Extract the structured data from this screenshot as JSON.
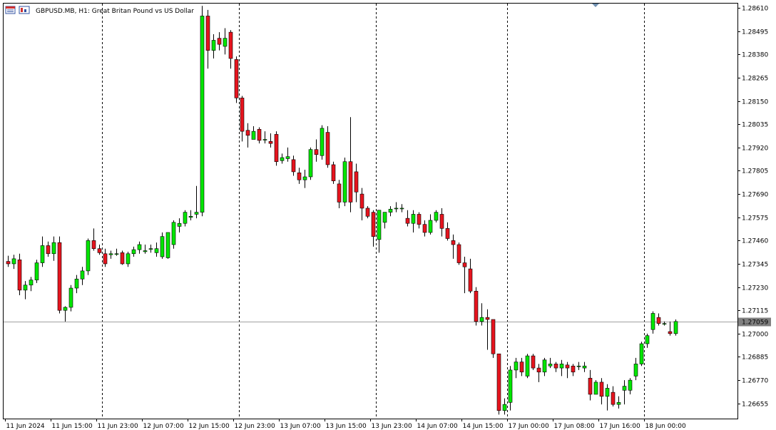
{
  "window": {
    "symbol": "GBPUSD.MB",
    "timeframe": "H1",
    "description": "Great Britan Pound vs US Dollar",
    "icons": [
      "window-menu-icon",
      "chart-type-icon"
    ]
  },
  "colors": {
    "up_body": "#00e600",
    "down_body": "#e6141e",
    "wick": "#000000",
    "grid": "#000000",
    "price_line": "#a0a0a0",
    "price_label_bg": "#808080",
    "price_label_text": "#ffffff"
  },
  "current_price_label": "1.27059",
  "chart_data": {
    "type": "candlestick",
    "title": "",
    "xlabel": "",
    "ylabel": "",
    "ylim": [
      1.2658,
      1.28635
    ],
    "y_ticks": [
      "1.28610",
      "1.28495",
      "1.28380",
      "1.28265",
      "1.28150",
      "1.28035",
      "1.27920",
      "1.27805",
      "1.27690",
      "1.27575",
      "1.27460",
      "1.27345",
      "1.27230",
      "1.27115",
      "1.27000",
      "1.26885",
      "1.26770",
      "1.26655"
    ],
    "x_labels": [
      "11 Jun 2024",
      "11 Jun 15:00",
      "11 Jun 23:00",
      "12 Jun 07:00",
      "12 Jun 15:00",
      "12 Jun 23:00",
      "13 Jun 07:00",
      "13 Jun 15:00",
      "13 Jun 23:00",
      "14 Jun 07:00",
      "14 Jun 15:00",
      "17 Jun 00:00",
      "17 Jun 08:00",
      "17 Jun 16:00",
      "18 Jun 00:00"
    ],
    "x_label_bars": [
      0,
      8,
      16,
      24,
      32,
      40,
      48,
      56,
      64,
      72,
      80,
      88,
      96,
      104,
      112
    ],
    "separator_bars": [
      17,
      41,
      65,
      88,
      112
    ],
    "grid": false,
    "current_price": 1.27059,
    "ohlc": [
      [
        1.27357,
        1.27385,
        1.2733,
        1.27345
      ],
      [
        1.27345,
        1.2739,
        1.2732,
        1.2737
      ],
      [
        1.27365,
        1.27395,
        1.2719,
        1.27215
      ],
      [
        1.27215,
        1.2726,
        1.2717,
        1.2724
      ],
      [
        1.2724,
        1.2728,
        1.2721,
        1.27265
      ],
      [
        1.27265,
        1.27365,
        1.2725,
        1.2735
      ],
      [
        1.2735,
        1.2748,
        1.2733,
        1.27435
      ],
      [
        1.27435,
        1.27455,
        1.2738,
        1.27395
      ],
      [
        1.27395,
        1.2748,
        1.2736,
        1.2745
      ],
      [
        1.2745,
        1.2748,
        1.271,
        1.27115
      ],
      [
        1.27115,
        1.27135,
        1.2706,
        1.2713
      ],
      [
        1.2713,
        1.2724,
        1.2711,
        1.27225
      ],
      [
        1.27225,
        1.2729,
        1.272,
        1.2727
      ],
      [
        1.2727,
        1.2733,
        1.2724,
        1.2731
      ],
      [
        1.2731,
        1.2747,
        1.2729,
        1.2746
      ],
      [
        1.2746,
        1.2752,
        1.2741,
        1.2742
      ],
      [
        1.2742,
        1.2744,
        1.2739,
        1.274
      ],
      [
        1.27395,
        1.2742,
        1.2733,
        1.27345
      ],
      [
        1.2739,
        1.2741,
        1.2737,
        1.27395
      ],
      [
        1.27395,
        1.2742,
        1.27385,
        1.27395
      ],
      [
        1.274,
        1.2741,
        1.2734,
        1.27345
      ],
      [
        1.27345,
        1.27405,
        1.2733,
        1.27395
      ],
      [
        1.27395,
        1.2743,
        1.2738,
        1.27415
      ],
      [
        1.27415,
        1.27455,
        1.27395,
        1.2744
      ],
      [
        1.27405,
        1.2744,
        1.27395,
        1.2741
      ],
      [
        1.2742,
        1.2744,
        1.274,
        1.2742
      ],
      [
        1.274,
        1.2745,
        1.2738,
        1.2742
      ],
      [
        1.2738,
        1.275,
        1.2737,
        1.2748
      ],
      [
        1.27375,
        1.275,
        1.2737,
        1.275
      ],
      [
        1.2744,
        1.2756,
        1.2742,
        1.2755
      ],
      [
        1.2753,
        1.2757,
        1.275,
        1.27545
      ],
      [
        1.27545,
        1.2761,
        1.2753,
        1.276
      ],
      [
        1.27575,
        1.2761,
        1.2756,
        1.2758
      ],
      [
        1.2759,
        1.2773,
        1.2757,
        1.276
      ],
      [
        1.276,
        1.2862,
        1.2758,
        1.2857
      ],
      [
        1.2857,
        1.286,
        1.2831,
        1.284
      ],
      [
        1.284,
        1.2848,
        1.2836,
        1.2845
      ],
      [
        1.2846,
        1.2849,
        1.284,
        1.2843
      ],
      [
        1.2842,
        1.2851,
        1.2838,
        1.2846
      ],
      [
        1.2849,
        1.285,
        1.2831,
        1.2836
      ],
      [
        1.28355,
        1.2837,
        1.2814,
        1.28165
      ],
      [
        1.28165,
        1.28175,
        1.2795,
        1.28
      ],
      [
        1.28005,
        1.2804,
        1.2792,
        1.2798
      ],
      [
        1.2796,
        1.28025,
        1.2797,
        1.28
      ],
      [
        1.2801,
        1.2802,
        1.2794,
        1.27955
      ],
      [
        1.2796,
        1.28,
        1.2794,
        1.2796
      ],
      [
        1.2795,
        1.2799,
        1.2792,
        1.2794
      ],
      [
        1.27985,
        1.28,
        1.2783,
        1.2785
      ],
      [
        1.27855,
        1.2789,
        1.2784,
        1.2787
      ],
      [
        1.27865,
        1.2792,
        1.2785,
        1.27875
      ],
      [
        1.2786,
        1.2788,
        1.2778,
        1.278
      ],
      [
        1.27795,
        1.2782,
        1.2774,
        1.2776
      ],
      [
        1.2776,
        1.2781,
        1.2772,
        1.27775
      ],
      [
        1.27775,
        1.2792,
        1.2776,
        1.2791
      ],
      [
        1.2791,
        1.2796,
        1.2785,
        1.27885
      ],
      [
        1.2788,
        1.2803,
        1.2786,
        1.28015
      ],
      [
        1.27995,
        1.28025,
        1.2782,
        1.27835
      ],
      [
        1.27835,
        1.2785,
        1.2774,
        1.27755
      ],
      [
        1.2774,
        1.2776,
        1.2762,
        1.2765
      ],
      [
        1.2765,
        1.2787,
        1.2763,
        1.2785
      ],
      [
        1.2785,
        1.2807,
        1.276,
        1.2765
      ],
      [
        1.278,
        1.2784,
        1.2765,
        1.277
      ],
      [
        1.2769,
        1.2772,
        1.2756,
        1.2762
      ],
      [
        1.2762,
        1.2763,
        1.2757,
        1.2758
      ],
      [
        1.276,
        1.2761,
        1.2743,
        1.2748
      ],
      [
        1.27465,
        1.2761,
        1.274,
        1.2761
      ],
      [
        1.2755,
        1.276,
        1.2752,
        1.276
      ],
      [
        1.276,
        1.2763,
        1.2758,
        1.27615
      ],
      [
        1.2762,
        1.2765,
        1.276,
        1.2762
      ],
      [
        1.2762,
        1.2764,
        1.276,
        1.2762
      ],
      [
        1.2757,
        1.2761,
        1.2753,
        1.27545
      ],
      [
        1.27545,
        1.2761,
        1.275,
        1.2759
      ],
      [
        1.2759,
        1.276,
        1.2752,
        1.2754
      ],
      [
        1.2754,
        1.2756,
        1.2748,
        1.275
      ],
      [
        1.275,
        1.2759,
        1.2749,
        1.2756
      ],
      [
        1.2756,
        1.2761,
        1.2755,
        1.276
      ],
      [
        1.2759,
        1.2762,
        1.2748,
        1.2752
      ],
      [
        1.2752,
        1.2755,
        1.2746,
        1.2747
      ],
      [
        1.2746,
        1.2749,
        1.2737,
        1.2744
      ],
      [
        1.2744,
        1.2745,
        1.2734,
        1.2735
      ],
      [
        1.2735,
        1.2738,
        1.272,
        1.2733
      ],
      [
        1.2732,
        1.2737,
        1.272,
        1.2721
      ],
      [
        1.2721,
        1.2723,
        1.2704,
        1.2706
      ],
      [
        1.2706,
        1.2715,
        1.2704,
        1.2708
      ],
      [
        1.2708,
        1.2712,
        1.2692,
        1.2707
      ],
      [
        1.2707,
        1.2707,
        1.2688,
        1.269
      ],
      [
        1.269,
        1.269,
        1.266,
        1.2662
      ],
      [
        1.2662,
        1.2668,
        1.266,
        1.2665
      ],
      [
        1.2666,
        1.2684,
        1.2662,
        1.2682
      ],
      [
        1.2682,
        1.2688,
        1.2678,
        1.2686
      ],
      [
        1.2686,
        1.2688,
        1.2679,
        1.2681
      ],
      [
        1.2679,
        1.269,
        1.2678,
        1.2689
      ],
      [
        1.2689,
        1.269,
        1.2682,
        1.2683
      ],
      [
        1.2683,
        1.2685,
        1.2676,
        1.2681
      ],
      [
        1.2681,
        1.2688,
        1.2679,
        1.2687
      ],
      [
        1.2684,
        1.2688,
        1.2683,
        1.2685
      ],
      [
        1.2685,
        1.2686,
        1.2681,
        1.2683
      ],
      [
        1.2683,
        1.2687,
        1.2679,
        1.2685
      ],
      [
        1.26845,
        1.2686,
        1.2678,
        1.2683
      ],
      [
        1.2684,
        1.2685,
        1.2679,
        1.2681
      ],
      [
        1.2684,
        1.2686,
        1.2682,
        1.2684
      ],
      [
        1.2683,
        1.2686,
        1.2681,
        1.2684
      ],
      [
        1.2678,
        1.2682,
        1.2667,
        1.267
      ],
      [
        1.267,
        1.2677,
        1.267,
        1.2676
      ],
      [
        1.2676,
        1.2678,
        1.2665,
        1.2669
      ],
      [
        1.2669,
        1.2675,
        1.2662,
        1.2673
      ],
      [
        1.2671,
        1.2674,
        1.2664,
        1.2665
      ],
      [
        1.2665,
        1.2669,
        1.2663,
        1.2666
      ],
      [
        1.2672,
        1.2677,
        1.2665,
        1.2674
      ],
      [
        1.2672,
        1.2678,
        1.267,
        1.2677
      ],
      [
        1.2679,
        1.2688,
        1.2677,
        1.2685
      ],
      [
        1.2685,
        1.2696,
        1.2684,
        1.2695
      ],
      [
        1.2695,
        1.27,
        1.2693,
        1.2699
      ],
      [
        1.2702,
        1.2711,
        1.27,
        1.271
      ],
      [
        1.2708,
        1.271,
        1.2704,
        1.2705
      ],
      [
        1.2705,
        1.2706,
        1.2704,
        1.2705
      ],
      [
        1.2701,
        1.2706,
        1.2699,
        1.27
      ],
      [
        1.27,
        1.2707,
        1.2699,
        1.2706
      ]
    ]
  }
}
